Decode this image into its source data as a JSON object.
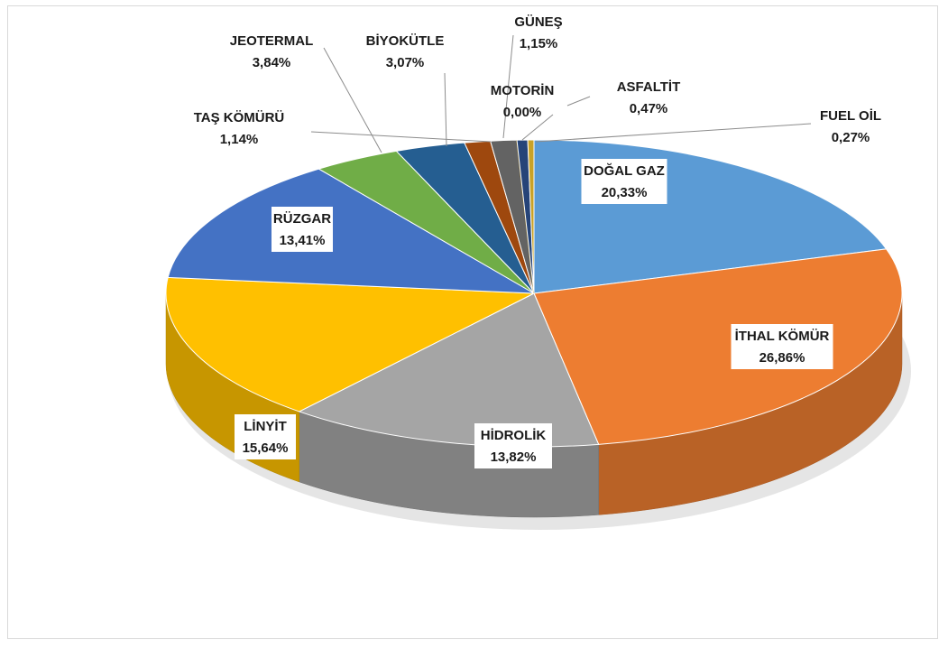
{
  "chart_data": {
    "type": "pie",
    "title": "",
    "style": "3d",
    "start_angle_deg": 90,
    "direction": "clockwise",
    "slices": [
      {
        "label": "DOĞAL GAZ",
        "value_text": "20,33%",
        "value": 20.33,
        "color": "#5b9bd5"
      },
      {
        "label": "İTHAL KÖMÜR",
        "value_text": "26,86%",
        "value": 26.86,
        "color": "#ed7d31"
      },
      {
        "label": "HİDROLİK",
        "value_text": "13,82%",
        "value": 13.82,
        "color": "#a5a5a5"
      },
      {
        "label": "LİNYİT",
        "value_text": "15,64%",
        "value": 15.64,
        "color": "#ffc000"
      },
      {
        "label": "RÜZGAR",
        "value_text": "13,41%",
        "value": 13.41,
        "color": "#4472c4"
      },
      {
        "label": "JEOTERMAL",
        "value_text": "3,84%",
        "value": 3.84,
        "color": "#70ad47"
      },
      {
        "label": "BİYOKÜTLE",
        "value_text": "3,07%",
        "value": 3.07,
        "color": "#255e91"
      },
      {
        "label": "TAŞ KÖMÜRÜ",
        "value_text": "1,14%",
        "value": 1.14,
        "color": "#9e480e"
      },
      {
        "label": "GÜNEŞ",
        "value_text": "1,15%",
        "value": 1.15,
        "color": "#636363"
      },
      {
        "label": "MOTORİN",
        "value_text": "0,00%",
        "value": 0.0,
        "color": "#997300"
      },
      {
        "label": "ASFALTİT",
        "value_text": "0,47%",
        "value": 0.47,
        "color": "#264478"
      },
      {
        "label": "FUEL OİL",
        "value_text": "0,27%",
        "value": 0.27,
        "color": "#c9a227"
      }
    ]
  }
}
